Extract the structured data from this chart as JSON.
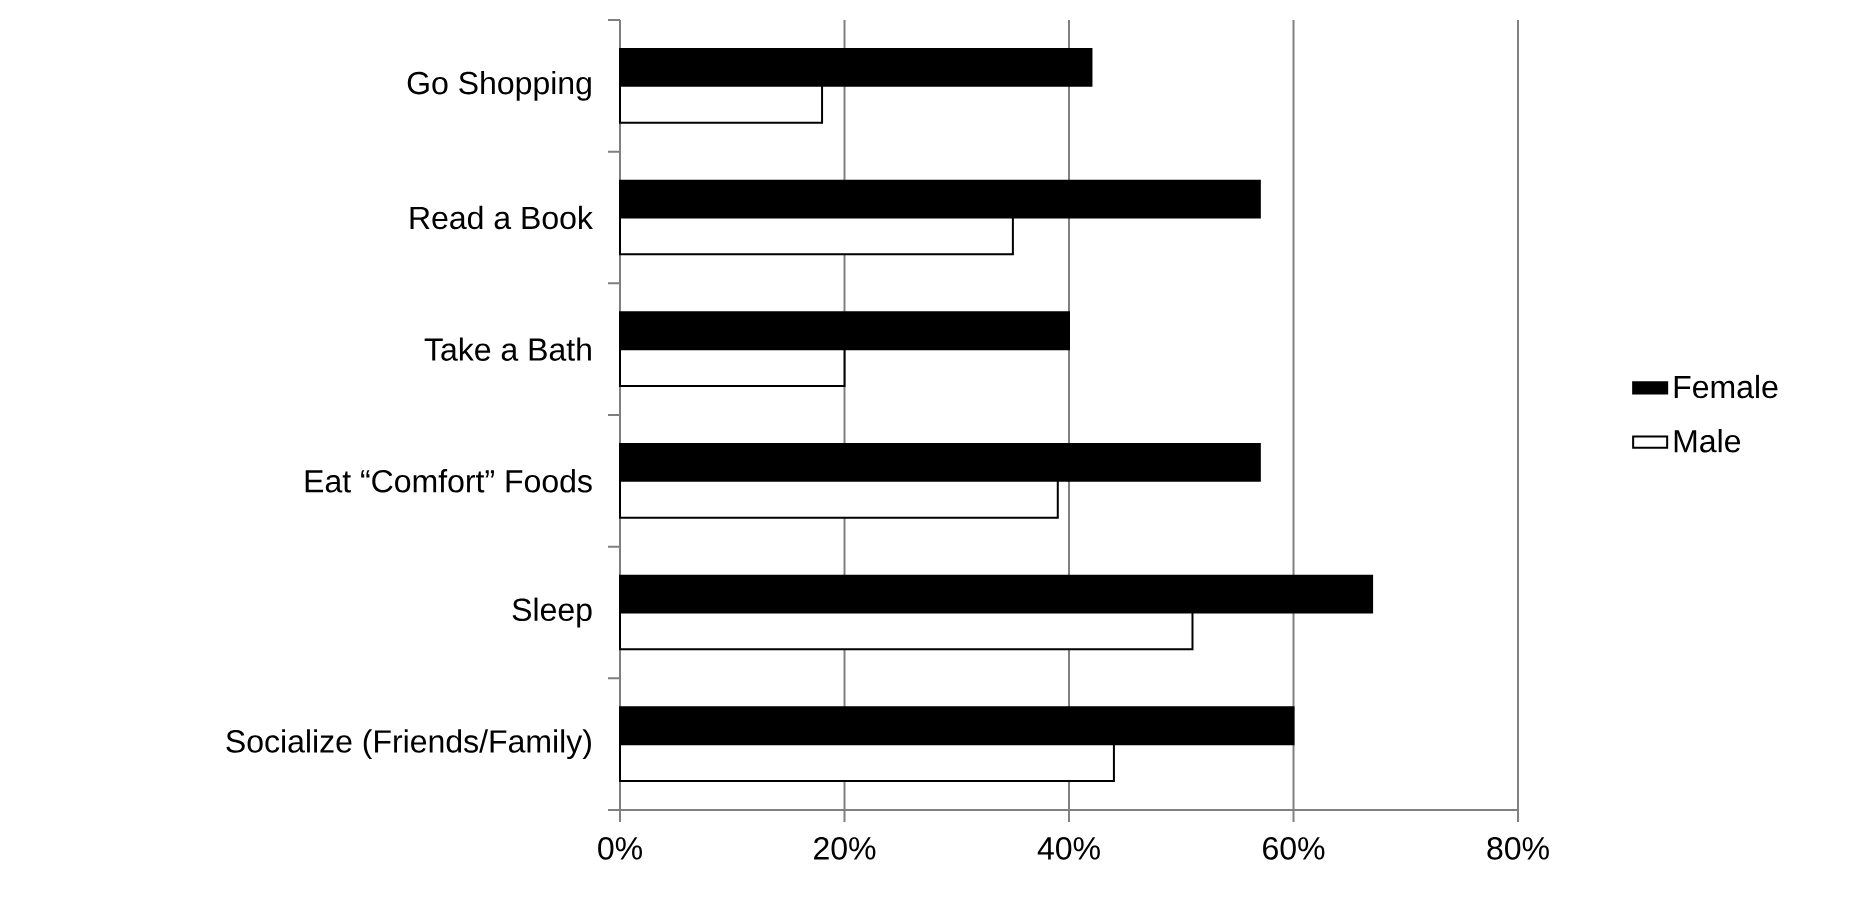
{
  "chart_data": {
    "type": "bar",
    "orientation": "horizontal",
    "categories": [
      "Go Shopping",
      "Read a Book",
      "Take a Bath",
      "Eat “Comfort” Foods",
      "Sleep",
      "Socialize (Friends/Family)"
    ],
    "series": [
      {
        "name": "Female",
        "color": "#000000",
        "values": [
          42,
          57,
          40,
          57,
          67,
          60
        ]
      },
      {
        "name": "Male",
        "color": "#ffffff",
        "values": [
          18,
          35,
          20,
          39,
          51,
          44
        ]
      }
    ],
    "xlim": [
      0,
      80
    ],
    "xticks": [
      {
        "value": 0,
        "label": "0%"
      },
      {
        "value": 20,
        "label": "20%"
      },
      {
        "value": 40,
        "label": "40%"
      },
      {
        "value": 60,
        "label": "60%"
      },
      {
        "value": 80,
        "label": "80%"
      }
    ],
    "grid": "x",
    "legend": "right"
  }
}
